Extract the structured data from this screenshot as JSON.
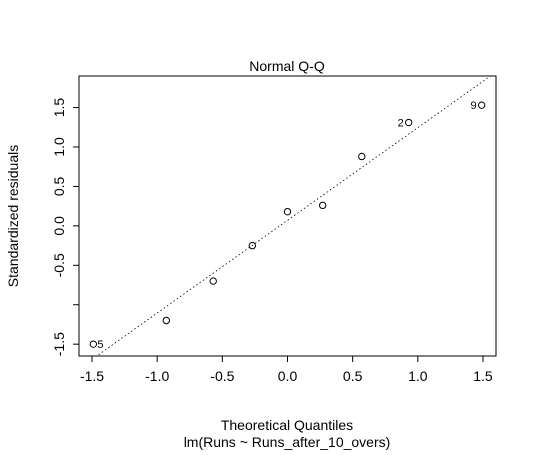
{
  "chart_data": {
    "type": "scatter",
    "title": "Normal Q-Q",
    "xlabel": "Theoretical Quantiles",
    "ylabel": "Standardized residuals",
    "subtitle": "lm(Runs ~ Runs_after_10_overs)",
    "xlim": [
      -1.6,
      1.6
    ],
    "ylim": [
      -1.65,
      1.9
    ],
    "x_ticks": [
      -1.5,
      -1.0,
      -0.5,
      0.0,
      0.5,
      1.0,
      1.5
    ],
    "x_tick_labels": [
      "-1.5",
      "-1.0",
      "-0.5",
      "0.0",
      "0.5",
      "1.0",
      "1.5"
    ],
    "y_ticks": [
      -1.5,
      -0.5,
      0.0,
      0.5,
      1.0,
      1.5
    ],
    "y_tick_labels": [
      "-1.5",
      "-0.5",
      "0.0",
      "0.5",
      "1.0",
      "1.5"
    ],
    "y_minor_ticks": [
      -1.0
    ],
    "points": [
      {
        "x": -1.49,
        "y": -1.5,
        "label": "5"
      },
      {
        "x": -0.93,
        "y": -1.2,
        "label": ""
      },
      {
        "x": -0.57,
        "y": -0.7,
        "label": ""
      },
      {
        "x": -0.27,
        "y": -0.25,
        "label": ""
      },
      {
        "x": 0.0,
        "y": 0.18,
        "label": ""
      },
      {
        "x": 0.27,
        "y": 0.26,
        "label": ""
      },
      {
        "x": 0.57,
        "y": 0.88,
        "label": ""
      },
      {
        "x": 0.93,
        "y": 1.31,
        "label": "2"
      },
      {
        "x": 1.49,
        "y": 1.53,
        "label": "9"
      }
    ],
    "reference_line": {
      "intercept": 0.07,
      "slope": 1.175,
      "style": "dotted"
    },
    "grid": false
  }
}
